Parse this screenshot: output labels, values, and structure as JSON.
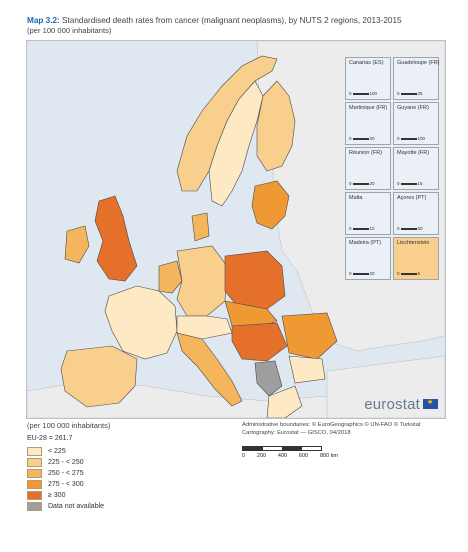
{
  "header": {
    "map_id": "Map 3.2:",
    "title": "Standardised death rates from cancer (malignant neoplasms), by NUTS 2 regions, 2013-2015",
    "subtitle": "(per 100 000 inhabitants)"
  },
  "map": {
    "insets": [
      {
        "name": "Canarias (ES)",
        "scale_end": "100"
      },
      {
        "name": "Guadeloupe (FR)",
        "scale_end": "25"
      },
      {
        "name": "Martinique (FR)",
        "scale_end": "20"
      },
      {
        "name": "Guyane (FR)",
        "scale_end": "100"
      },
      {
        "name": "Réunion (FR)",
        "scale_end": "20"
      },
      {
        "name": "Mayotte (FR)",
        "scale_end": "15"
      },
      {
        "name": "Malta",
        "scale_end": "10"
      },
      {
        "name": "Açores (PT)",
        "scale_end": "50"
      },
      {
        "name": "Madeira (PT)",
        "scale_end": "20"
      },
      {
        "name": "Liechtenstein",
        "scale_end": "5"
      }
    ],
    "brand": "eurostat"
  },
  "legend": {
    "unit_note": "(per 100 000 inhabitants)",
    "eu_reference": "EU-28 = 261.7",
    "classes": [
      {
        "label": "< 225",
        "color": "#fde9c4"
      },
      {
        "label": "225 - < 250",
        "color": "#f9cf8e"
      },
      {
        "label": "250 - < 275",
        "color": "#f5b55d"
      },
      {
        "label": "275 - < 300",
        "color": "#ef9935"
      },
      {
        "label": "≥ 300",
        "color": "#e4702a"
      },
      {
        "label": "Data not available",
        "color": "#9e9e9e"
      }
    ]
  },
  "credits": {
    "boundaries": "Administrative boundaries: © EuroGeographics © UN-FAO © Turkstat",
    "cartography": "Cartography: Eurostat — GISCO, 04/2018"
  },
  "scale": {
    "ticks": [
      "0",
      "200",
      "400",
      "600",
      "800 km"
    ]
  },
  "colors": {
    "sea": "#dfe8f1",
    "outside_land": "#ececec",
    "border": "#4a4a4a"
  }
}
